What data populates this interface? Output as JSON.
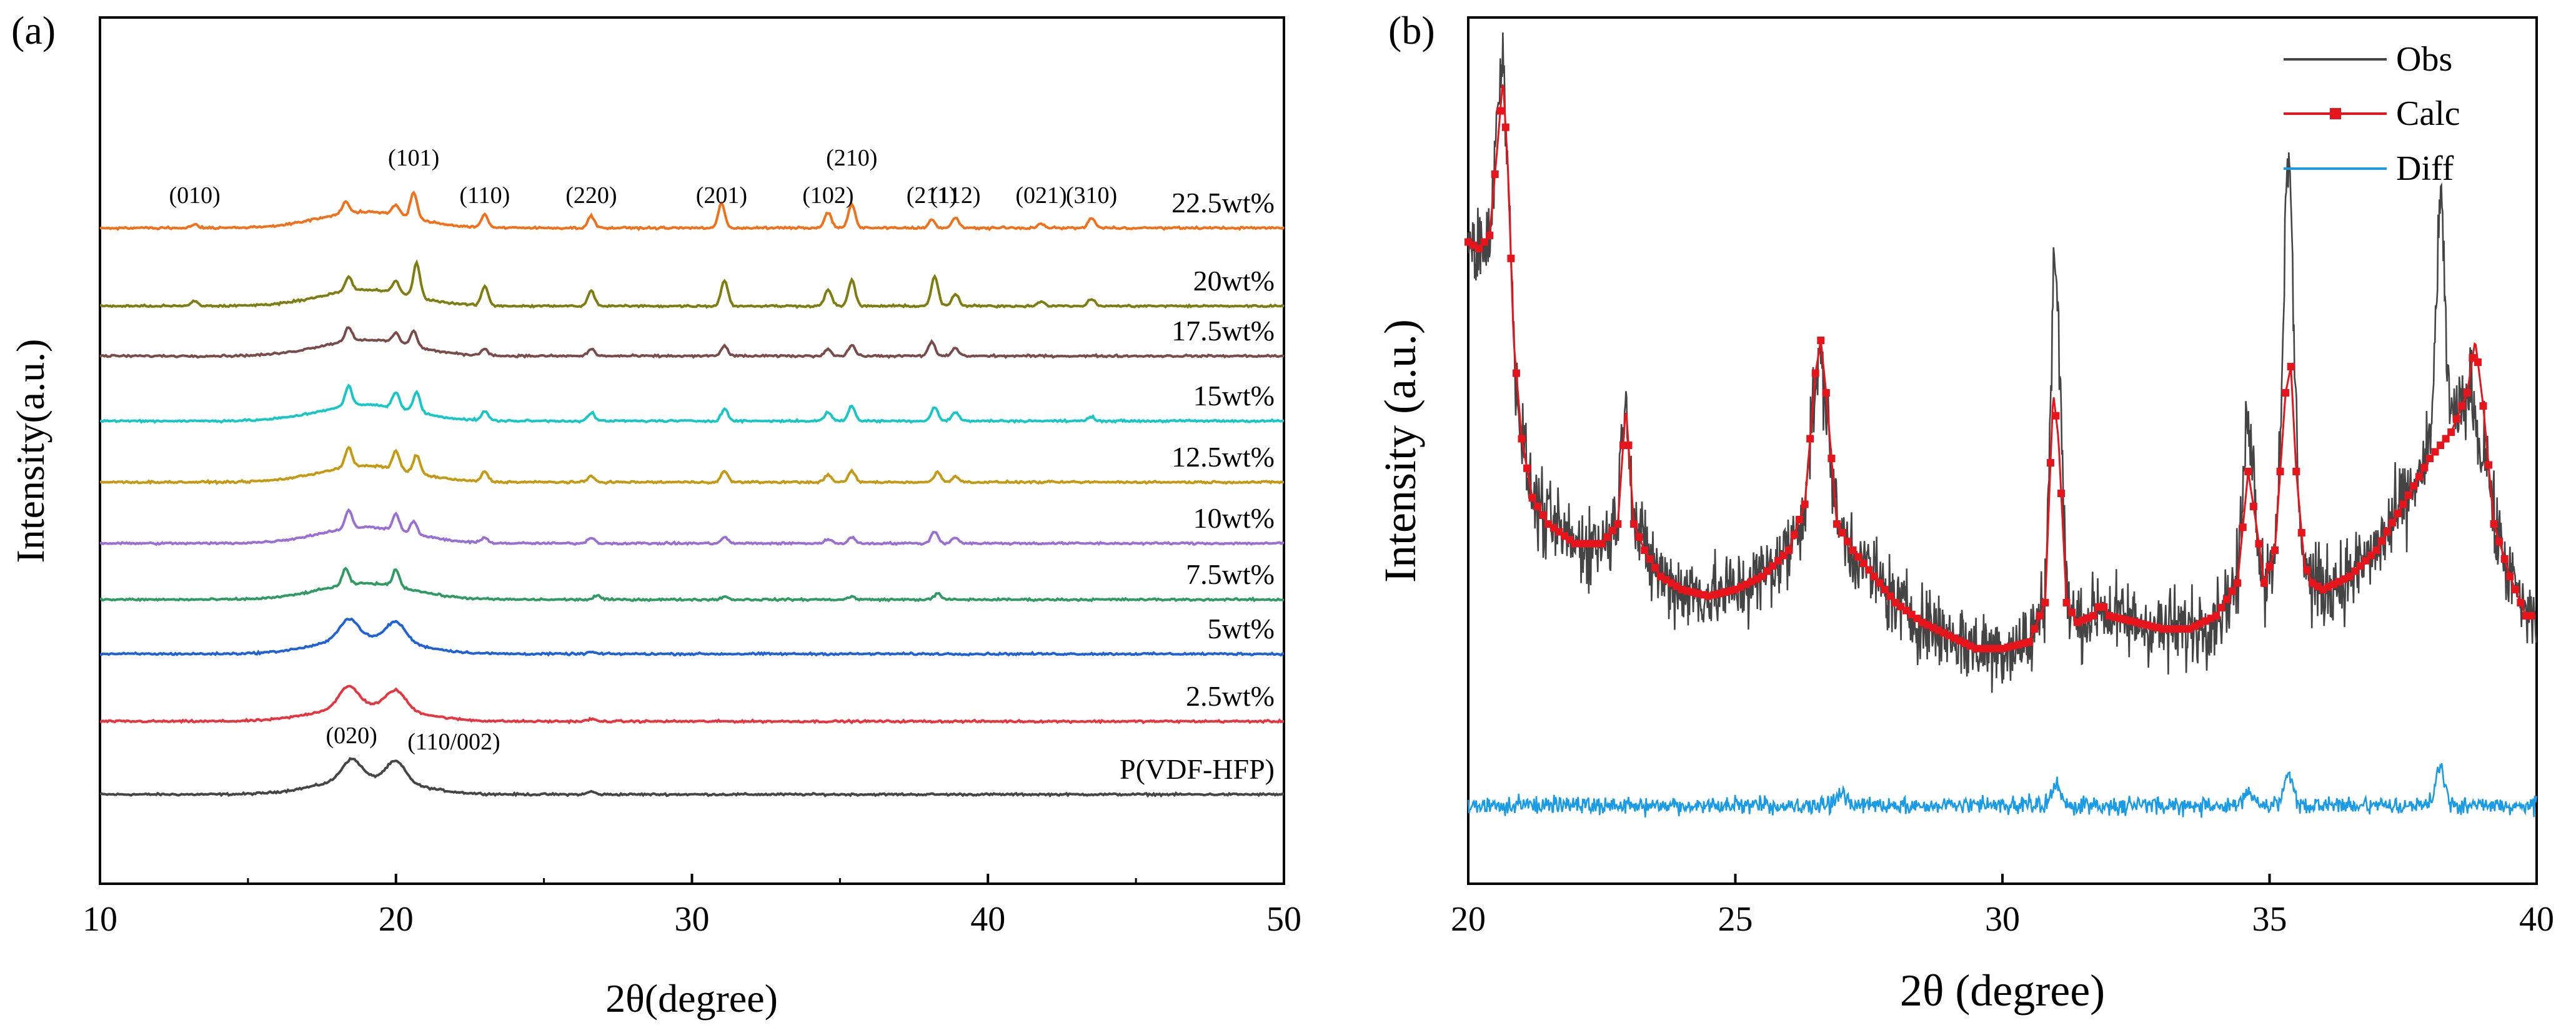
{
  "chart_data": [
    {
      "panel": "(a)",
      "type": "line",
      "title": "",
      "xlabel": "2θ(degree)",
      "ylabel": "Intensity(a.u.)",
      "xlim": [
        10,
        50
      ],
      "xticks": [
        "10",
        "20",
        "30",
        "40",
        "50"
      ],
      "grid": false,
      "stacking": "vertically offset traces, bottom to top",
      "peak_labels": [
        {
          "text": "(010)",
          "x": 13.2
        },
        {
          "text": "(101)",
          "x": 20.6
        },
        {
          "text": "(110)",
          "x": 23.0
        },
        {
          "text": "(220)",
          "x": 26.6
        },
        {
          "text": "(201)",
          "x": 31.0
        },
        {
          "text": "(102)",
          "x": 34.6
        },
        {
          "text": "(210)",
          "x": 35.4
        },
        {
          "text": "(211)",
          "x": 38.1
        },
        {
          "text": "(112)",
          "x": 38.9
        },
        {
          "text": "(021)",
          "x": 41.8
        },
        {
          "text": "(310)",
          "x": 43.5
        },
        {
          "text": "(020)",
          "x": 18.5
        },
        {
          "text": "(110/002)",
          "x": 20.1
        }
      ],
      "series": [
        {
          "name": "P(VDF-HFP)",
          "color": "#454545",
          "peaks": [
            [
              18.5,
              1.0
            ],
            [
              20.0,
              1.0
            ],
            [
              26.6,
              0.15
            ]
          ]
        },
        {
          "name": "2.5wt%",
          "color": "#e8343e",
          "peaks": [
            [
              18.4,
              1.0
            ],
            [
              20.0,
              0.9
            ],
            [
              26.6,
              0.12
            ]
          ]
        },
        {
          "name": "5wt%",
          "color": "#1f62d6",
          "peaks": [
            [
              18.4,
              1.0
            ],
            [
              20.0,
              0.95
            ],
            [
              26.6,
              0.1
            ]
          ]
        },
        {
          "name": "7.5wt%",
          "color": "#2f9a63",
          "peaks": [
            [
              18.3,
              0.8
            ],
            [
              20.0,
              0.85
            ],
            [
              26.8,
              0.2
            ],
            [
              31.1,
              0.15
            ],
            [
              35.4,
              0.15
            ],
            [
              38.3,
              0.3
            ]
          ]
        },
        {
          "name": "10wt%",
          "color": "#9a6fd3",
          "peaks": [
            [
              18.4,
              0.9
            ],
            [
              20.0,
              0.8
            ],
            [
              20.6,
              0.6
            ],
            [
              23.0,
              0.25
            ],
            [
              26.6,
              0.3
            ],
            [
              31.1,
              0.3
            ],
            [
              34.6,
              0.2
            ],
            [
              35.4,
              0.3
            ],
            [
              38.2,
              0.6
            ],
            [
              38.9,
              0.3
            ]
          ]
        },
        {
          "name": "12.5wt%",
          "color": "#c49a12",
          "peaks": [
            [
              18.4,
              1.0
            ],
            [
              20.0,
              0.9
            ],
            [
              20.7,
              0.9
            ],
            [
              23.0,
              0.5
            ],
            [
              26.6,
              0.3
            ],
            [
              31.1,
              0.55
            ],
            [
              34.6,
              0.35
            ],
            [
              35.4,
              0.55
            ],
            [
              38.3,
              0.5
            ],
            [
              38.9,
              0.3
            ]
          ]
        },
        {
          "name": "15wt%",
          "color": "#17c7c7",
          "peaks": [
            [
              18.4,
              1.0
            ],
            [
              20.0,
              0.8
            ],
            [
              20.7,
              1.0
            ],
            [
              23.0,
              0.45
            ],
            [
              26.6,
              0.4
            ],
            [
              31.1,
              0.6
            ],
            [
              34.6,
              0.45
            ],
            [
              35.4,
              0.75
            ],
            [
              38.2,
              0.7
            ],
            [
              38.9,
              0.45
            ],
            [
              43.5,
              0.2
            ]
          ]
        },
        {
          "name": "17.5wt%",
          "color": "#7a4b4b",
          "peaks": [
            [
              18.4,
              0.7
            ],
            [
              20.0,
              0.5
            ],
            [
              20.6,
              0.8
            ],
            [
              23.0,
              0.35
            ],
            [
              26.6,
              0.35
            ],
            [
              31.1,
              0.5
            ],
            [
              34.6,
              0.35
            ],
            [
              35.4,
              0.55
            ],
            [
              38.1,
              0.7
            ],
            [
              38.9,
              0.4
            ]
          ]
        },
        {
          "name": "20wt%",
          "color": "#7d7d10",
          "peaks": [
            [
              13.2,
              0.25
            ],
            [
              18.4,
              0.7
            ],
            [
              20.0,
              0.6
            ],
            [
              20.7,
              1.7
            ],
            [
              23.0,
              0.95
            ],
            [
              26.6,
              0.75
            ],
            [
              31.1,
              1.3
            ],
            [
              34.6,
              0.85
            ],
            [
              35.4,
              1.3
            ],
            [
              38.2,
              1.5
            ],
            [
              38.9,
              0.6
            ],
            [
              41.8,
              0.25
            ],
            [
              43.5,
              0.35
            ]
          ]
        },
        {
          "name": "22.5wt%",
          "color": "#f0711a",
          "peaks": [
            [
              13.2,
              0.2
            ],
            [
              18.3,
              0.6
            ],
            [
              20.0,
              0.5
            ],
            [
              20.6,
              1.3
            ],
            [
              23.0,
              0.65
            ],
            [
              26.6,
              0.6
            ],
            [
              31.0,
              1.2
            ],
            [
              34.6,
              0.8
            ],
            [
              35.4,
              1.2
            ],
            [
              38.1,
              0.4
            ],
            [
              38.9,
              0.5
            ],
            [
              41.8,
              0.2
            ],
            [
              43.5,
              0.5
            ]
          ]
        }
      ]
    },
    {
      "panel": "(b)",
      "type": "line",
      "title": "",
      "xlabel": "2θ  (degree)",
      "ylabel": "Intensity  (a.u.)",
      "xlim": [
        20,
        40
      ],
      "xticks": [
        "20",
        "25",
        "30",
        "35",
        "40"
      ],
      "grid": false,
      "legend_position": "top-right",
      "series": [
        {
          "name": "Obs",
          "color": "#444444",
          "marker": "none"
        },
        {
          "name": "Calc",
          "color": "#e8141c",
          "marker": "square"
        },
        {
          "name": "Diff",
          "color": "#1a9be6",
          "marker": "none"
        }
      ],
      "calc_curve": {
        "x": [
          20.0,
          20.2,
          20.4,
          20.55,
          20.65,
          20.75,
          20.85,
          21.0,
          21.2,
          21.5,
          22.0,
          22.5,
          22.8,
          22.95,
          23.1,
          23.3,
          23.6,
          24.0,
          24.5,
          25.0,
          25.5,
          26.0,
          26.3,
          26.5,
          26.6,
          26.7,
          26.9,
          27.2,
          27.6,
          28.0,
          28.5,
          29.0,
          29.5,
          30.0,
          30.5,
          30.8,
          30.95,
          31.05,
          31.2,
          31.4,
          31.7,
          31.85,
          32.0,
          32.5,
          33.0,
          33.5,
          34.0,
          34.4,
          34.6,
          34.75,
          34.9,
          35.1,
          35.3,
          35.4,
          35.5,
          35.65,
          35.8,
          36.0,
          36.5,
          37.0,
          37.5,
          38.0,
          38.4,
          38.7,
          38.85,
          39.0,
          39.2,
          39.5,
          39.8,
          40.0
        ],
        "y": [
          0.85,
          0.84,
          0.86,
          1.0,
          1.1,
          0.95,
          0.7,
          0.55,
          0.46,
          0.42,
          0.39,
          0.39,
          0.42,
          0.6,
          0.42,
          0.38,
          0.34,
          0.32,
          0.31,
          0.32,
          0.34,
          0.38,
          0.45,
          0.65,
          0.7,
          0.62,
          0.42,
          0.38,
          0.34,
          0.3,
          0.27,
          0.25,
          0.23,
          0.23,
          0.24,
          0.3,
          0.62,
          0.55,
          0.3,
          0.27,
          0.28,
          0.3,
          0.28,
          0.27,
          0.26,
          0.26,
          0.28,
          0.33,
          0.5,
          0.42,
          0.33,
          0.38,
          0.62,
          0.66,
          0.5,
          0.36,
          0.33,
          0.32,
          0.34,
          0.38,
          0.45,
          0.52,
          0.56,
          0.62,
          0.7,
          0.6,
          0.42,
          0.34,
          0.28,
          0.28
        ]
      },
      "obs_peaks": [
        [
          20.6,
          1.1
        ],
        [
          22.9,
          0.58
        ],
        [
          26.6,
          0.67
        ],
        [
          31.0,
          0.8
        ],
        [
          34.6,
          0.6
        ],
        [
          35.35,
          0.95
        ],
        [
          38.2,
          0.9
        ],
        [
          38.9,
          0.55
        ]
      ],
      "diff_peaks": [
        [
          27.0,
          0.06
        ],
        [
          31.0,
          0.09
        ],
        [
          34.6,
          0.06
        ],
        [
          35.35,
          0.12
        ],
        [
          38.2,
          0.16
        ]
      ]
    }
  ]
}
